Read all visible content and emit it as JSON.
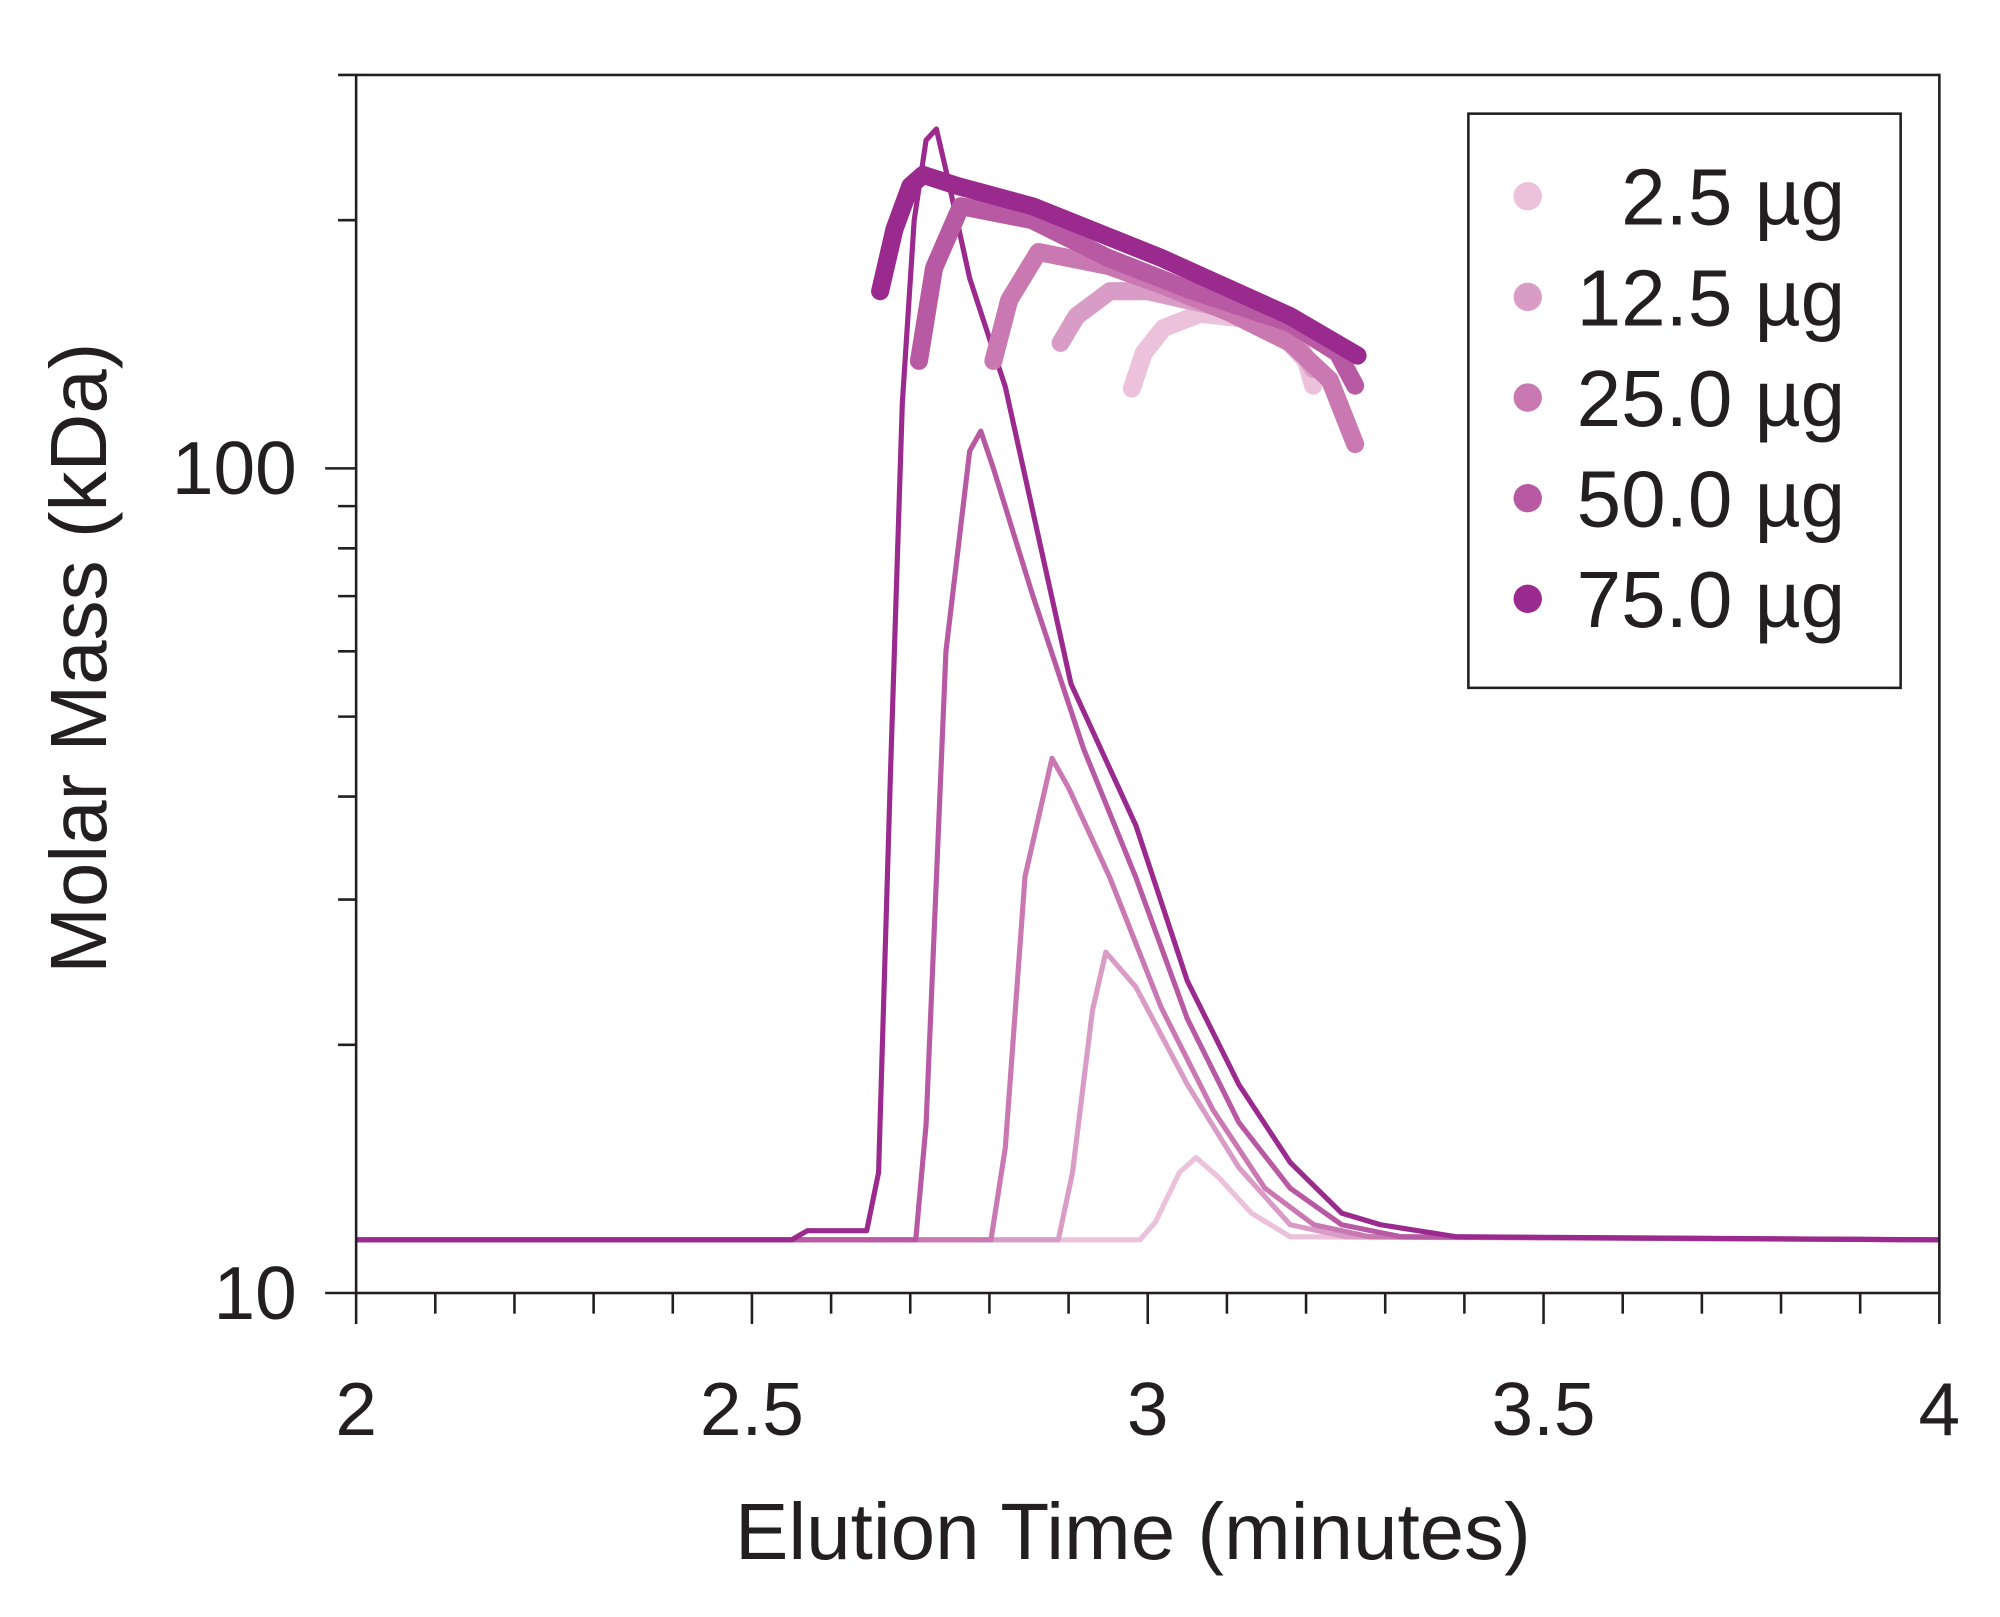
{
  "chart_data": {
    "type": "line",
    "xlabel": "Elution Time (minutes)",
    "ylabel": "Molar Mass (kDa)",
    "xlim": [
      2,
      4
    ],
    "ylim": [
      10,
      300
    ],
    "yscale": "log",
    "grid": false,
    "legend_placement": "top-right",
    "x_ticks": [
      "2",
      "2.5",
      "3",
      "3.5",
      "4"
    ],
    "x_tick_values": [
      2,
      2.5,
      3,
      3.5,
      4
    ],
    "y_ticks": [
      "10",
      "100"
    ],
    "y_tick_values": [
      10,
      100
    ],
    "series": [
      {
        "name": "2.5 µg",
        "color": "#ebc1dc",
        "trace": [
          [
            2,
            11.6
          ],
          [
            2.99,
            11.6
          ],
          [
            3.01,
            12.2
          ],
          [
            3.04,
            14.0
          ],
          [
            3.061,
            14.6
          ],
          [
            3.09,
            13.8
          ],
          [
            3.131,
            12.5
          ],
          [
            3.18,
            11.7
          ],
          [
            4,
            11.6
          ]
        ],
        "molar_mass": [
          [
            2.98,
            125
          ],
          [
            2.995,
            138
          ],
          [
            3.02,
            148
          ],
          [
            3.066,
            154
          ],
          [
            3.12,
            152
          ],
          [
            3.17,
            145
          ],
          [
            3.2,
            135
          ],
          [
            3.209,
            126
          ]
        ]
      },
      {
        "name": "12.5 µg",
        "color": "#d99cc6",
        "trace": [
          [
            2,
            11.6
          ],
          [
            2.887,
            11.6
          ],
          [
            2.905,
            14
          ],
          [
            2.93,
            22
          ],
          [
            2.947,
            25.9
          ],
          [
            2.985,
            23.5
          ],
          [
            3.05,
            17.9
          ],
          [
            3.115,
            14.2
          ],
          [
            3.18,
            12.1
          ],
          [
            3.25,
            11.7
          ],
          [
            4,
            11.6
          ]
        ],
        "molar_mass": [
          [
            2.89,
            142
          ],
          [
            2.91,
            153
          ],
          [
            2.952,
            164
          ],
          [
            3.0,
            164
          ],
          [
            3.1,
            156
          ],
          [
            3.18,
            146
          ],
          [
            3.209,
            132
          ]
        ]
      },
      {
        "name": "25.0 µg",
        "color": "#c978b2",
        "trace": [
          [
            2,
            11.6
          ],
          [
            2.802,
            11.6
          ],
          [
            2.82,
            15
          ],
          [
            2.845,
            32
          ],
          [
            2.879,
            44.5
          ],
          [
            2.9,
            41
          ],
          [
            2.952,
            31.9
          ],
          [
            3.017,
            22.2
          ],
          [
            3.082,
            16.7
          ],
          [
            3.148,
            13.4
          ],
          [
            3.21,
            12.1
          ],
          [
            3.28,
            11.7
          ],
          [
            4,
            11.6
          ]
        ],
        "molar_mass": [
          [
            2.805,
            135
          ],
          [
            2.825,
            160
          ],
          [
            2.862,
            183
          ],
          [
            2.95,
            176
          ],
          [
            3.017,
            167
          ],
          [
            3.1,
            155
          ],
          [
            3.18,
            142
          ],
          [
            3.23,
            128
          ],
          [
            3.262,
            107
          ]
        ]
      },
      {
        "name": "50.0 µg",
        "color": "#b85aa3",
        "trace": [
          [
            2,
            11.6
          ],
          [
            2.707,
            11.6
          ],
          [
            2.72,
            16
          ],
          [
            2.745,
            60
          ],
          [
            2.775,
            105
          ],
          [
            2.789,
            111
          ],
          [
            2.805,
            100
          ],
          [
            2.854,
            70.5
          ],
          [
            2.919,
            45.7
          ],
          [
            2.985,
            31.9
          ],
          [
            3.05,
            21.5
          ],
          [
            3.115,
            16.1
          ],
          [
            3.18,
            13.4
          ],
          [
            3.245,
            12.1
          ],
          [
            3.32,
            11.7
          ],
          [
            4,
            11.6
          ]
        ],
        "molar_mass": [
          [
            2.711,
            135
          ],
          [
            2.73,
            175
          ],
          [
            2.764,
            208
          ],
          [
            2.854,
            200
          ],
          [
            2.95,
            180
          ],
          [
            3.05,
            165
          ],
          [
            3.18,
            150
          ],
          [
            3.24,
            138
          ],
          [
            3.262,
            126
          ]
        ]
      },
      {
        "name": "75.0 µg",
        "color": "#9b2a8e",
        "trace": [
          [
            2,
            11.6
          ],
          [
            2.55,
            11.6
          ],
          [
            2.57,
            11.9
          ],
          [
            2.645,
            11.9
          ],
          [
            2.66,
            14
          ],
          [
            2.675,
            42.6
          ],
          [
            2.69,
            120
          ],
          [
            2.705,
            200
          ],
          [
            2.72,
            250
          ],
          [
            2.733,
            258
          ],
          [
            2.745,
            230
          ],
          [
            2.775,
            170
          ],
          [
            2.82,
            125.6
          ],
          [
            2.903,
            54.8
          ],
          [
            2.985,
            36.9
          ],
          [
            3.05,
            23.9
          ],
          [
            3.115,
            17.9
          ],
          [
            3.18,
            14.4
          ],
          [
            3.245,
            12.5
          ],
          [
            3.294,
            12.1
          ],
          [
            3.39,
            11.7
          ],
          [
            4,
            11.6
          ]
        ],
        "molar_mass": [
          [
            2.662,
            164
          ],
          [
            2.68,
            195
          ],
          [
            2.7,
            220
          ],
          [
            2.716,
            227
          ],
          [
            2.76,
            220
          ],
          [
            2.854,
            208
          ],
          [
            3.017,
            180
          ],
          [
            3.18,
            153
          ],
          [
            3.265,
            137
          ]
        ]
      }
    ]
  }
}
